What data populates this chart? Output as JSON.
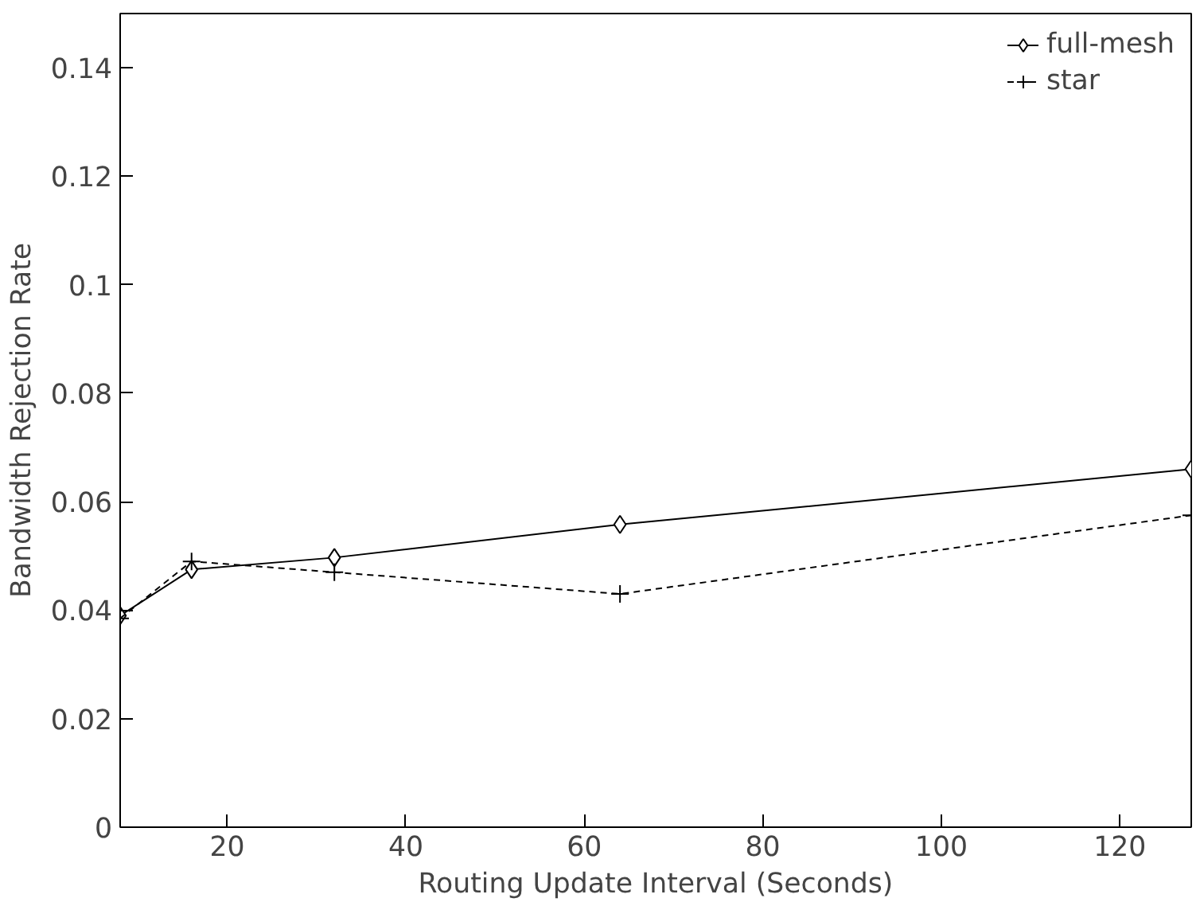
{
  "chart_data": {
    "type": "line",
    "xlabel": "Routing Update Interval (Seconds)",
    "ylabel": "Bandwidth Rejection Rate",
    "x": [
      8,
      16,
      32,
      64,
      128
    ],
    "series": [
      {
        "name": "full-mesh",
        "color": "#000000",
        "marker": "diamond",
        "line_style": "solid",
        "values": [
          0.039,
          0.0475,
          0.0497,
          0.0558,
          0.066
        ]
      },
      {
        "name": "star",
        "color": "#000000",
        "marker": "cross",
        "line_style": "dashed",
        "values": [
          0.0385,
          0.049,
          0.047,
          0.043,
          0.0575
        ]
      }
    ],
    "xlim": [
      8,
      128
    ],
    "ylim": [
      0,
      0.15
    ],
    "xticks": [
      20,
      40,
      60,
      80,
      100,
      120
    ],
    "yticks": [
      0,
      0.02,
      0.04,
      0.06,
      0.08,
      0.1,
      0.12,
      0.14
    ],
    "grid": false,
    "legend": "top right"
  }
}
